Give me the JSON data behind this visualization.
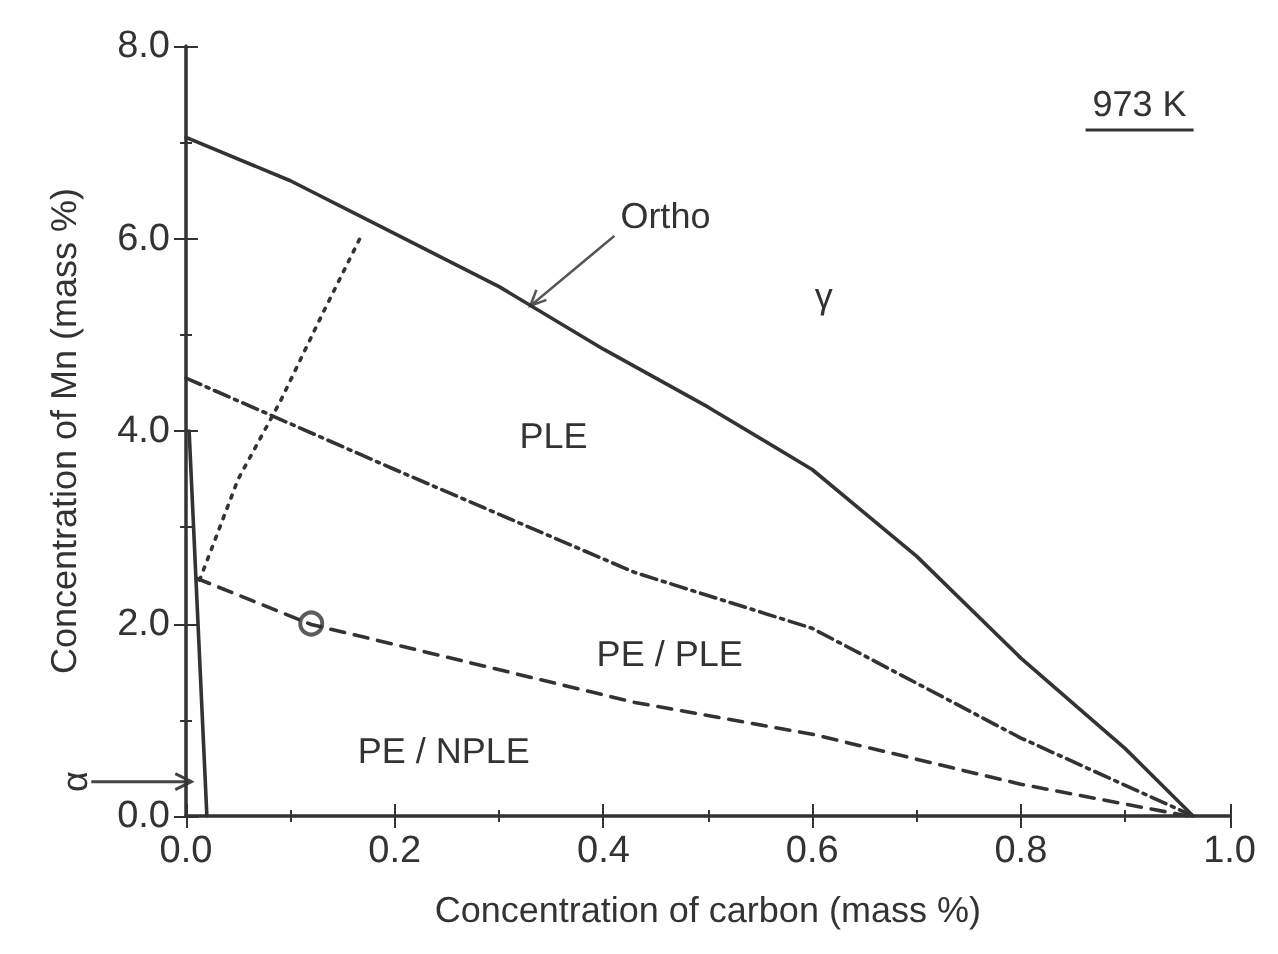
{
  "chart_data": {
    "type": "line",
    "xlabel": "Concentration of carbon (mass %)",
    "ylabel": "Concentration of Mn (mass %)",
    "xlim": [
      0,
      1
    ],
    "ylim": [
      0,
      8
    ],
    "xticks": [
      {
        "value": 0,
        "label": "0.0"
      },
      {
        "value": 0.2,
        "label": "0.2"
      },
      {
        "value": 0.4,
        "label": "0.4"
      },
      {
        "value": 0.6,
        "label": "0.6"
      },
      {
        "value": 0.8,
        "label": "0.8"
      },
      {
        "value": 1,
        "label": "1.0"
      }
    ],
    "yticks": [
      {
        "value": 0,
        "label": "0.0"
      },
      {
        "value": 2,
        "label": "2.0"
      },
      {
        "value": 4,
        "label": "4.0"
      },
      {
        "value": 6,
        "label": "6.0"
      },
      {
        "value": 8,
        "label": "8.0"
      }
    ],
    "grid": false,
    "series": [
      {
        "color": "#333333",
        "line_style": "solid",
        "x": [
          0,
          0.1,
          0.2,
          0.3,
          0.4,
          0.5,
          0.6,
          0.7,
          0.8,
          0.9,
          0.965
        ],
        "values": [
          7.05,
          6.6,
          6.05,
          5.5,
          4.85,
          4.25,
          3.6,
          2.7,
          1.64,
          0.7,
          0
        ]
      },
      {
        "color": "#333333",
        "line_style": "dashdot",
        "x": [
          0,
          0.2,
          0.43,
          0.6,
          0.8,
          0.965
        ],
        "values": [
          4.55,
          3.6,
          2.53,
          1.95,
          0.81,
          0
        ]
      },
      {
        "color": "#333333",
        "line_style": "dashed",
        "x": [
          0.01,
          0.12,
          0.43,
          0.6,
          0.8,
          0.96
        ],
        "values": [
          2.47,
          1.99,
          1.18,
          0.85,
          0.33,
          0
        ]
      },
      {
        "color": "#333333",
        "line_style": "dotted",
        "x": [
          0.013,
          0.05,
          0.09,
          0.13,
          0.168
        ],
        "values": [
          2.45,
          3.5,
          4.3,
          5.2,
          6.03
        ]
      },
      {
        "color": "#333333",
        "line_style": "solid",
        "x": [
          0.003,
          0.02
        ],
        "values": [
          4.0,
          0
        ]
      },
      {
        "type": "scatter",
        "color": "#333333",
        "marker": "circle",
        "x": [
          0.12
        ],
        "values": [
          2.0
        ]
      }
    ],
    "annotations": [
      "973 K",
      {
        "text": "Ortho",
        "x": 0.33,
        "y": 5.3
      },
      "γ",
      "PLE",
      "PE / PLE",
      "PE / NPLE",
      "α"
    ]
  }
}
